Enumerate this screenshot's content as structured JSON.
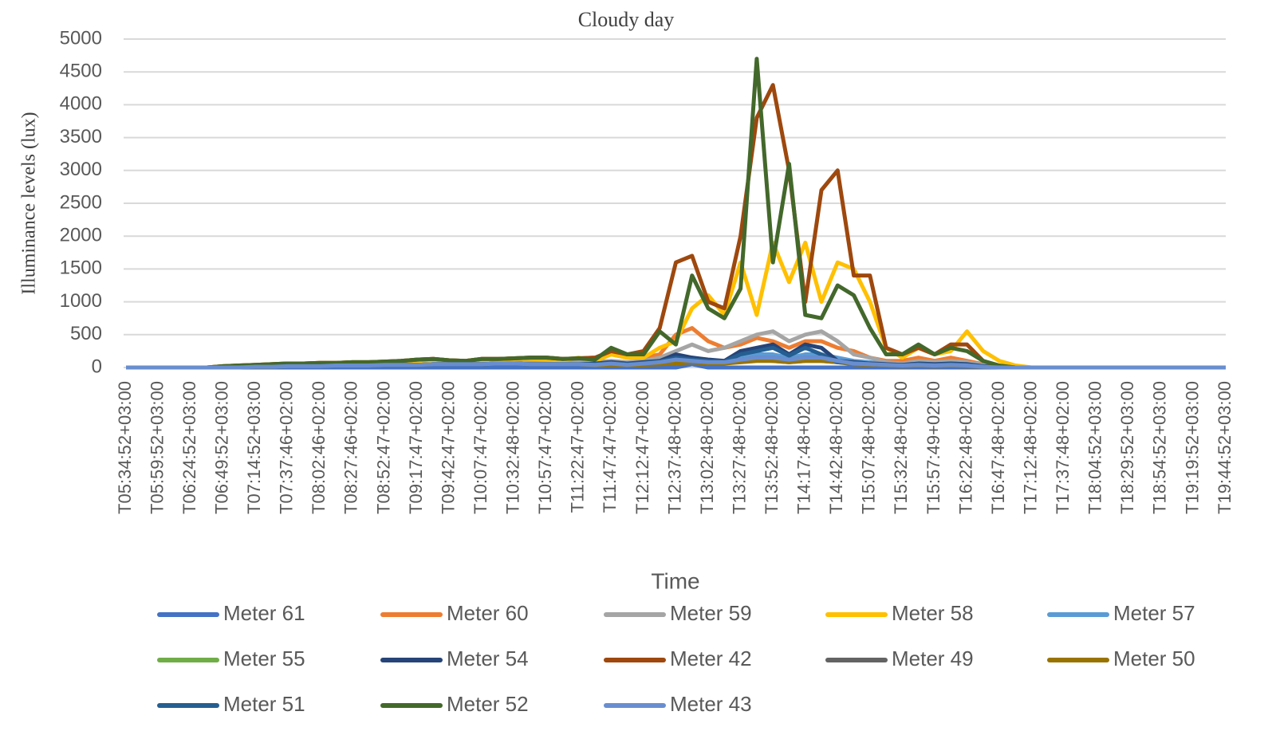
{
  "chart_data": {
    "type": "line",
    "title": "Cloudy day",
    "y_label": "Illuminance levels (lux)",
    "x_label": "Time",
    "categories": [
      "T05:34:52+03:00",
      null,
      "T05:59:52+03:00",
      null,
      "T06:24:52+03:00",
      null,
      "T06:49:52+03:00",
      null,
      "T07:14:52+03:00",
      null,
      "T07:37:46+02:00",
      null,
      "T08:02:46+02:00",
      null,
      "T08:27:46+02:00",
      null,
      "T08:52:47+02:00",
      null,
      "T09:17:47+02:00",
      null,
      "T09:42:47+02:00",
      null,
      "T10:07:47+02:00",
      null,
      "T10:32:48+02:00",
      null,
      "T10:57:47+02:00",
      null,
      "T11:22:47+02:00",
      null,
      "T11:47:47+02:00",
      null,
      "T12:12:47+02:00",
      null,
      "T12:37:48+02:00",
      null,
      "T13:02:48+02:00",
      null,
      "T13:27:48+02:00",
      null,
      "T13:52:48+02:00",
      null,
      "T14:17:48+02:00",
      null,
      "T14:42:48+02:00",
      null,
      "T15:07:48+02:00",
      null,
      "T15:32:48+02:00",
      null,
      "T15:57:49+02:00",
      null,
      "T16:22:48+02:00",
      null,
      "T16:47:48+02:00",
      null,
      "T17:12:48+02:00",
      null,
      "T17:37:48+02:00",
      null,
      "T18:04:52+03:00",
      null,
      "T18:29:52+03:00",
      null,
      "T18:54:52+03:00",
      null,
      "T19:19:52+03:00",
      null,
      "T19:44:52+03:00"
    ],
    "ylim": [
      0,
      5000
    ],
    "yticks": [
      0,
      500,
      1000,
      1500,
      2000,
      2500,
      3000,
      3500,
      4000,
      4500,
      5000
    ],
    "grid": true,
    "series": [
      {
        "name": "Meter 61",
        "color": "#4472c4",
        "values": [
          0,
          0,
          0,
          0,
          0,
          0,
          0,
          0,
          0,
          0,
          0,
          0,
          0,
          0,
          0,
          0,
          0,
          0,
          0,
          0,
          0,
          0,
          0,
          0,
          0,
          0,
          0,
          0,
          0,
          0,
          0,
          0,
          0,
          0,
          0,
          50,
          0,
          0,
          0,
          0,
          0,
          0,
          0,
          0,
          0,
          0,
          0,
          0,
          0,
          0,
          0,
          0,
          0,
          0,
          0,
          0,
          0,
          0,
          0,
          0,
          0,
          0,
          0,
          0,
          0,
          0,
          0,
          0,
          0
        ]
      },
      {
        "name": "Meter 60",
        "color": "#ed7d31",
        "values": [
          0,
          0,
          0,
          0,
          0,
          0,
          20,
          30,
          40,
          50,
          60,
          60,
          70,
          70,
          80,
          80,
          90,
          100,
          120,
          130,
          110,
          100,
          130,
          130,
          140,
          150,
          150,
          130,
          140,
          150,
          200,
          150,
          150,
          200,
          500,
          600,
          400,
          300,
          350,
          450,
          400,
          300,
          400,
          400,
          300,
          250,
          150,
          100,
          100,
          150,
          100,
          150,
          100,
          50,
          10,
          0,
          0,
          0,
          0,
          0,
          0,
          0,
          0,
          0,
          0,
          0,
          0,
          0,
          0
        ]
      },
      {
        "name": "Meter 59",
        "color": "#a5a5a5",
        "values": [
          0,
          0,
          0,
          0,
          0,
          0,
          10,
          10,
          20,
          20,
          30,
          30,
          40,
          40,
          50,
          50,
          50,
          60,
          60,
          70,
          60,
          60,
          70,
          70,
          80,
          80,
          80,
          70,
          80,
          80,
          100,
          80,
          100,
          150,
          250,
          350,
          250,
          300,
          400,
          500,
          550,
          400,
          500,
          550,
          400,
          200,
          150,
          80,
          60,
          100,
          80,
          100,
          80,
          40,
          10,
          0,
          0,
          0,
          0,
          0,
          0,
          0,
          0,
          0,
          0,
          0,
          0,
          0,
          0
        ]
      },
      {
        "name": "Meter 58",
        "color": "#ffc000",
        "values": [
          0,
          0,
          0,
          0,
          0,
          0,
          10,
          20,
          30,
          40,
          50,
          50,
          60,
          60,
          70,
          70,
          80,
          80,
          100,
          110,
          100,
          90,
          110,
          120,
          130,
          130,
          120,
          110,
          150,
          100,
          200,
          150,
          150,
          300,
          400,
          900,
          1100,
          800,
          1600,
          800,
          1900,
          1300,
          1900,
          1000,
          1600,
          1500,
          1000,
          300,
          150,
          300,
          200,
          250,
          550,
          250,
          100,
          30,
          0,
          0,
          0,
          0,
          0,
          0,
          0,
          0,
          0,
          0,
          0,
          0,
          0
        ]
      },
      {
        "name": "Meter 57",
        "color": "#5b9bd5",
        "values": [
          0,
          0,
          0,
          0,
          0,
          0,
          0,
          0,
          10,
          10,
          20,
          20,
          20,
          30,
          30,
          30,
          40,
          40,
          40,
          50,
          50,
          50,
          50,
          60,
          60,
          50,
          50,
          50,
          50,
          50,
          60,
          50,
          60,
          80,
          100,
          150,
          100,
          100,
          150,
          200,
          200,
          150,
          200,
          200,
          150,
          100,
          80,
          50,
          40,
          60,
          50,
          60,
          50,
          20,
          5,
          0,
          0,
          0,
          0,
          0,
          0,
          0,
          0,
          0,
          0,
          0,
          0,
          0,
          0
        ]
      },
      {
        "name": "Meter 55",
        "color": "#70ad47",
        "values": [
          0,
          0,
          0,
          0,
          0,
          0,
          0,
          0,
          10,
          10,
          20,
          20,
          20,
          30,
          30,
          30,
          40,
          40,
          40,
          50,
          50,
          50,
          50,
          60,
          60,
          50,
          50,
          50,
          50,
          40,
          50,
          40,
          50,
          60,
          80,
          100,
          80,
          80,
          100,
          120,
          100,
          80,
          100,
          100,
          80,
          60,
          50,
          40,
          30,
          40,
          30,
          40,
          30,
          10,
          0,
          0,
          0,
          0,
          0,
          0,
          0,
          0,
          0,
          0,
          0,
          0,
          0,
          0,
          0
        ]
      },
      {
        "name": "Meter 54",
        "color": "#264478",
        "values": [
          0,
          0,
          0,
          0,
          0,
          0,
          0,
          0,
          10,
          10,
          20,
          20,
          20,
          30,
          30,
          30,
          40,
          40,
          40,
          50,
          50,
          50,
          50,
          60,
          60,
          50,
          50,
          50,
          50,
          60,
          80,
          60,
          80,
          100,
          200,
          150,
          120,
          100,
          250,
          300,
          350,
          200,
          350,
          300,
          100,
          80,
          60,
          50,
          40,
          60,
          50,
          60,
          50,
          20,
          5,
          0,
          0,
          0,
          0,
          0,
          0,
          0,
          0,
          0,
          0,
          0,
          0,
          0,
          0
        ]
      },
      {
        "name": "Meter 42",
        "color": "#9e480e",
        "values": [
          0,
          0,
          0,
          0,
          0,
          0,
          20,
          30,
          40,
          50,
          60,
          60,
          70,
          70,
          80,
          80,
          90,
          100,
          120,
          130,
          110,
          100,
          130,
          130,
          140,
          150,
          150,
          130,
          140,
          150,
          250,
          200,
          250,
          600,
          1600,
          1700,
          1000,
          900,
          2000,
          3800,
          4300,
          3000,
          1000,
          2700,
          3000,
          1400,
          1400,
          300,
          200,
          300,
          200,
          350,
          350,
          100,
          20,
          0,
          0,
          0,
          0,
          0,
          0,
          0,
          0,
          0,
          0,
          0,
          0,
          0,
          0
        ]
      },
      {
        "name": "Meter 49",
        "color": "#636363",
        "values": [
          0,
          0,
          0,
          0,
          0,
          0,
          0,
          0,
          10,
          10,
          20,
          20,
          20,
          30,
          30,
          30,
          40,
          40,
          40,
          50,
          50,
          50,
          50,
          60,
          60,
          50,
          50,
          50,
          50,
          40,
          50,
          40,
          50,
          60,
          100,
          120,
          100,
          80,
          120,
          150,
          150,
          120,
          150,
          150,
          100,
          60,
          50,
          40,
          30,
          40,
          30,
          40,
          30,
          10,
          0,
          0,
          0,
          0,
          0,
          0,
          0,
          0,
          0,
          0,
          0,
          0,
          0,
          0,
          0
        ]
      },
      {
        "name": "Meter 50",
        "color": "#997300",
        "values": [
          0,
          0,
          0,
          0,
          0,
          0,
          0,
          0,
          10,
          10,
          20,
          20,
          20,
          30,
          30,
          30,
          40,
          40,
          40,
          50,
          50,
          50,
          50,
          60,
          60,
          50,
          50,
          50,
          50,
          30,
          40,
          30,
          40,
          50,
          60,
          80,
          60,
          60,
          80,
          100,
          100,
          80,
          100,
          100,
          80,
          50,
          40,
          30,
          20,
          30,
          20,
          30,
          20,
          10,
          0,
          0,
          0,
          0,
          0,
          0,
          0,
          0,
          0,
          0,
          0,
          0,
          0,
          0,
          0
        ]
      },
      {
        "name": "Meter 51",
        "color": "#255e91",
        "values": [
          0,
          0,
          0,
          0,
          0,
          0,
          0,
          0,
          10,
          10,
          20,
          20,
          20,
          30,
          30,
          30,
          40,
          40,
          40,
          50,
          50,
          50,
          50,
          60,
          60,
          50,
          50,
          50,
          50,
          50,
          70,
          50,
          70,
          90,
          150,
          120,
          100,
          90,
          200,
          250,
          300,
          180,
          300,
          200,
          80,
          70,
          50,
          40,
          30,
          50,
          40,
          50,
          40,
          15,
          0,
          0,
          0,
          0,
          0,
          0,
          0,
          0,
          0,
          0,
          0,
          0,
          0,
          0,
          0
        ]
      },
      {
        "name": "Meter 52",
        "color": "#43682b",
        "values": [
          0,
          0,
          0,
          0,
          0,
          0,
          20,
          30,
          40,
          50,
          60,
          60,
          70,
          70,
          80,
          80,
          90,
          100,
          120,
          130,
          110,
          100,
          130,
          130,
          140,
          150,
          150,
          130,
          140,
          120,
          300,
          200,
          200,
          550,
          350,
          1400,
          900,
          750,
          1200,
          4700,
          1600,
          3100,
          800,
          750,
          1250,
          1100,
          600,
          200,
          200,
          350,
          200,
          300,
          250,
          100,
          30,
          0,
          0,
          0,
          0,
          0,
          0,
          0,
          0,
          0,
          0,
          0,
          0,
          0,
          0
        ]
      },
      {
        "name": "Meter 43",
        "color": "#698ed0",
        "values": [
          0,
          0,
          0,
          0,
          0,
          0,
          0,
          0,
          10,
          10,
          20,
          20,
          20,
          30,
          30,
          30,
          40,
          40,
          40,
          50,
          50,
          50,
          50,
          60,
          60,
          50,
          50,
          50,
          50,
          40,
          60,
          40,
          60,
          80,
          120,
          100,
          80,
          80,
          120,
          150,
          150,
          120,
          150,
          150,
          100,
          60,
          50,
          40,
          30,
          40,
          30,
          40,
          30,
          10,
          0,
          0,
          0,
          0,
          0,
          0,
          0,
          0,
          0,
          0,
          0,
          0,
          0,
          0,
          0
        ]
      }
    ]
  }
}
